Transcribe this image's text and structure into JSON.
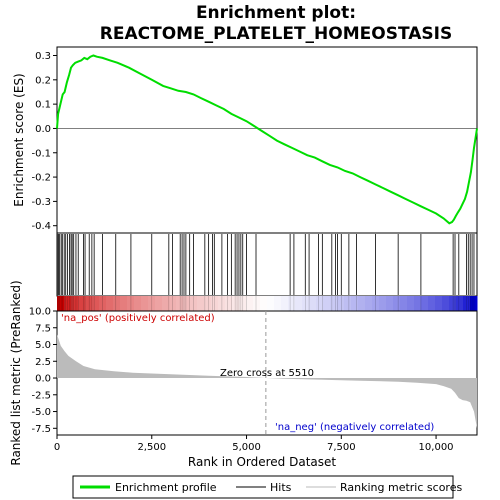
{
  "chart_data": {
    "type": "line",
    "title_line1": "Enrichment plot:",
    "title_line2": "REACTOME_PLATELET_HOMEOSTASIS",
    "top_panel": {
      "ylabel": "Enrichment score (ES)",
      "ylim": [
        -0.43,
        0.335
      ],
      "yticks": [
        0.3,
        0.2,
        0.1,
        0.0,
        -0.1,
        -0.2,
        -0.3,
        -0.4
      ],
      "ytick_labels": [
        "0.3",
        "0.2",
        "0.1",
        "0.0",
        "-0.1",
        "-0.2",
        "-0.3",
        "-0.4"
      ],
      "line_color": "#00dd00",
      "series": [
        {
          "x": [
            0,
            30,
            90,
            150,
            200,
            260,
            320,
            370,
            420,
            480,
            560,
            640,
            720,
            800,
            880,
            960,
            1050,
            1200,
            1400,
            1600,
            1900,
            2200,
            2500,
            2800,
            3000,
            3200,
            3400,
            3600,
            3800,
            4000,
            4200,
            4400,
            4600,
            4800,
            5000,
            5200,
            5400,
            5600,
            5800,
            6000,
            6200,
            6400,
            6600,
            6800,
            7000,
            7200,
            7400,
            7600,
            7800,
            8000,
            8200,
            8400,
            8600,
            8800,
            9000,
            9200,
            9400,
            9600,
            9800,
            10000,
            10200,
            10350,
            10420,
            10470,
            10520,
            10580,
            10640,
            10700,
            10760,
            10820,
            10870,
            10920,
            10960,
            11000,
            11040,
            11080
          ],
          "y": [
            0.0,
            0.06,
            0.1,
            0.14,
            0.15,
            0.19,
            0.22,
            0.25,
            0.26,
            0.27,
            0.275,
            0.28,
            0.29,
            0.285,
            0.295,
            0.3,
            0.295,
            0.29,
            0.28,
            0.27,
            0.25,
            0.225,
            0.2,
            0.175,
            0.165,
            0.155,
            0.15,
            0.14,
            0.125,
            0.11,
            0.095,
            0.08,
            0.06,
            0.045,
            0.03,
            0.01,
            -0.01,
            -0.03,
            -0.05,
            -0.065,
            -0.08,
            -0.095,
            -0.11,
            -0.12,
            -0.135,
            -0.15,
            -0.16,
            -0.175,
            -0.185,
            -0.2,
            -0.215,
            -0.23,
            -0.245,
            -0.26,
            -0.275,
            -0.29,
            -0.305,
            -0.32,
            -0.335,
            -0.35,
            -0.37,
            -0.39,
            -0.385,
            -0.375,
            -0.36,
            -0.345,
            -0.33,
            -0.31,
            -0.29,
            -0.26,
            -0.22,
            -0.18,
            -0.13,
            -0.08,
            -0.04,
            0.0
          ]
        }
      ]
    },
    "hits": [
      10,
      40,
      70,
      110,
      140,
      190,
      230,
      280,
      330,
      370,
      400,
      440,
      500,
      560,
      700,
      740,
      850,
      920,
      980,
      1200,
      1550,
      1950,
      2500,
      2950,
      3050,
      3250,
      3300,
      3350,
      3400,
      3500,
      3600,
      3900,
      4000,
      4100,
      4150,
      4350,
      4500,
      4600,
      4700,
      4750,
      4800,
      4850,
      4900,
      5000,
      5250,
      6150,
      6250,
      6550,
      6650,
      6900,
      7000,
      7250,
      7350,
      7400,
      7500,
      7700,
      7900,
      8400,
      9000,
      9600,
      10450,
      10500,
      10600,
      10800,
      10850,
      10900,
      10950,
      11000
    ],
    "bottom_panel": {
      "ylabel": "Ranked list metric (PreRanked)",
      "ylim": [
        -8.5,
        10.0
      ],
      "yticks": [
        10.0,
        7.5,
        5.0,
        2.5,
        0.0,
        -2.5,
        -5.0,
        -7.5
      ],
      "ytick_labels": [
        "10.0",
        "7.5",
        "5.0",
        "2.5",
        "0.0",
        "-2.5",
        "-5.0",
        "-7.5"
      ],
      "metric_x": [
        0,
        100,
        200,
        300,
        500,
        700,
        1000,
        1500,
        2000,
        3000,
        4000,
        5000,
        5510,
        6000,
        7000,
        8000,
        9000,
        9500,
        10000,
        10200,
        10400,
        10500,
        10600,
        10700,
        10800,
        10900,
        11000,
        11080
      ],
      "metric_y": [
        6.5,
        4.8,
        4.0,
        3.3,
        2.5,
        1.8,
        1.3,
        1.0,
        0.8,
        0.55,
        0.35,
        0.15,
        0.0,
        -0.1,
        -0.25,
        -0.4,
        -0.55,
        -0.7,
        -0.9,
        -1.2,
        -1.6,
        -2.2,
        -3.0,
        -3.3,
        -3.4,
        -3.6,
        -5.0,
        -7.5
      ],
      "zero_cross_label": "Zero cross at 5510",
      "zero_cross": 5510,
      "pos_label": "'na_pos' (positively correlated)",
      "neg_label": "'na_neg' (negatively correlated)",
      "pos_color": "#cc0000",
      "neg_color": "#0000cc"
    },
    "xlabel": "Rank in Ordered Dataset",
    "xlim": [
      0,
      11080
    ],
    "xticks": [
      0,
      2500,
      5000,
      7500,
      10000
    ],
    "xtick_labels": [
      "0",
      "2,500",
      "5,000",
      "7,500",
      "10,000"
    ],
    "legend": [
      {
        "label": "Enrichment profile",
        "color": "#00dd00"
      },
      {
        "label": "Hits",
        "color": "#000000"
      },
      {
        "label": "Ranking metric scores",
        "color": "#bbbbbb"
      }
    ]
  }
}
